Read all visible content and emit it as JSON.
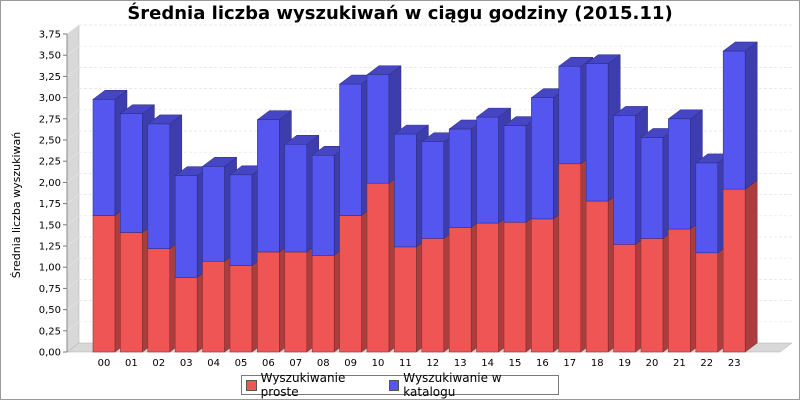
{
  "chart_data": {
    "type": "bar",
    "stacked": true,
    "style": "3d",
    "title": "Średnia liczba wyszukiwań w ciągu godziny (2015.11)",
    "xlabel": "",
    "ylabel": "Średnia liczba wyszukiwań",
    "ylim": [
      0,
      3.75
    ],
    "yticks": [
      "0,00",
      "0,25",
      "0,50",
      "0,75",
      "1,00",
      "1,25",
      "1,50",
      "1,75",
      "2,00",
      "2,25",
      "2,50",
      "2,75",
      "3,00",
      "3,25",
      "3,50",
      "3,75"
    ],
    "categories": [
      "00",
      "01",
      "02",
      "03",
      "04",
      "05",
      "06",
      "07",
      "08",
      "09",
      "10",
      "11",
      "12",
      "13",
      "14",
      "15",
      "16",
      "17",
      "18",
      "19",
      "20",
      "21",
      "22",
      "23"
    ],
    "series": [
      {
        "name": "Wyszukiwanie proste",
        "color": "#ef5555",
        "values": [
          1.61,
          1.41,
          1.22,
          0.88,
          1.07,
          1.02,
          1.18,
          1.18,
          1.14,
          1.61,
          1.99,
          1.24,
          1.34,
          1.47,
          1.52,
          1.53,
          1.57,
          2.22,
          1.78,
          1.27,
          1.34,
          1.45,
          1.17,
          1.92
        ]
      },
      {
        "name": "Wyszukiwanie w katalogu",
        "color": "#5555f0",
        "values": [
          1.37,
          1.4,
          1.47,
          1.2,
          1.12,
          1.07,
          1.56,
          1.27,
          1.18,
          1.55,
          1.28,
          1.33,
          1.14,
          1.16,
          1.25,
          1.14,
          1.43,
          1.15,
          1.62,
          1.52,
          1.19,
          1.3,
          1.06,
          1.63
        ]
      }
    ],
    "grid": true,
    "legend": "bottom"
  }
}
